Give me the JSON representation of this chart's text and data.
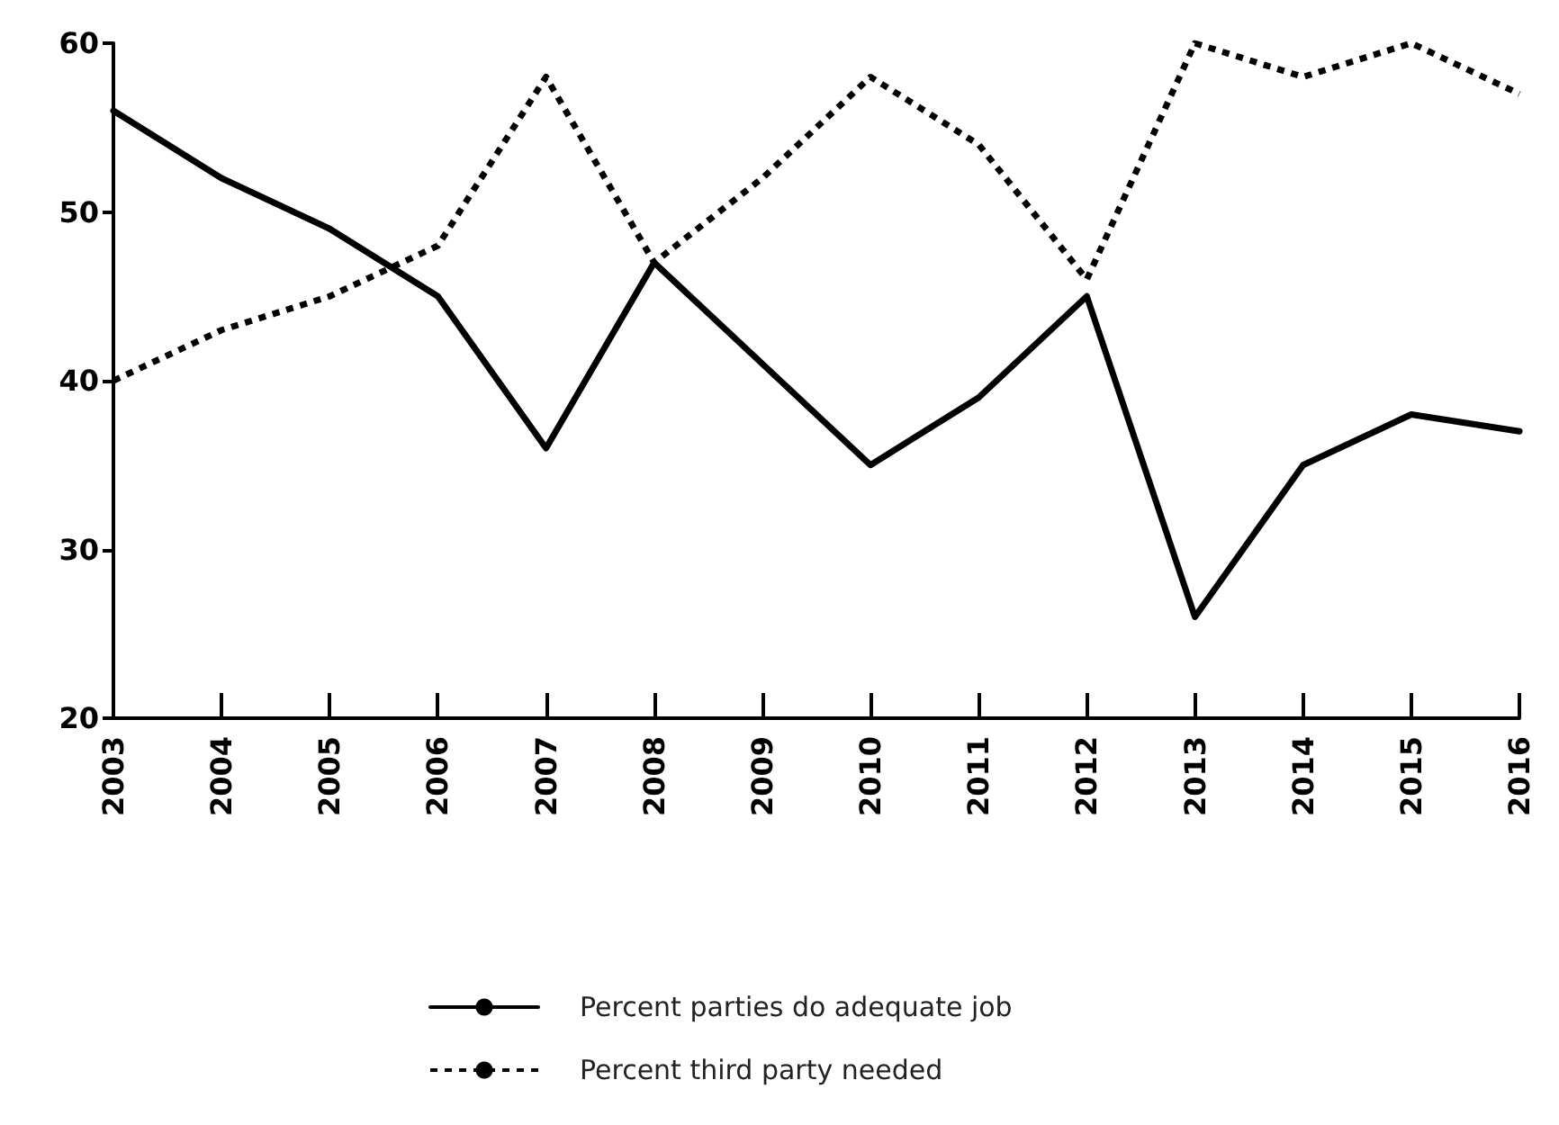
{
  "chart_data": {
    "type": "line",
    "categories": [
      "2003",
      "2004",
      "2005",
      "2006",
      "2007",
      "2008",
      "2009",
      "2010",
      "2011",
      "2012",
      "2013",
      "2014",
      "2015",
      "2016"
    ],
    "series": [
      {
        "name": "Percent parties do adequate job",
        "color": "#000000",
        "line_style": "solid",
        "values": [
          56,
          52,
          49,
          45,
          36,
          47,
          41,
          35,
          39,
          45,
          26,
          35,
          38,
          37
        ]
      },
      {
        "name": "Percent third party needed",
        "color": "#000000",
        "line_style": "dotted",
        "values": [
          40,
          43,
          45,
          48,
          58,
          47,
          52,
          58,
          54,
          46,
          60,
          58,
          60,
          57
        ]
      }
    ],
    "ylim": [
      20,
      60
    ],
    "yticks": [
      20,
      30,
      40,
      50,
      60
    ],
    "grid": false,
    "legend": "bottom",
    "marker": "none"
  }
}
